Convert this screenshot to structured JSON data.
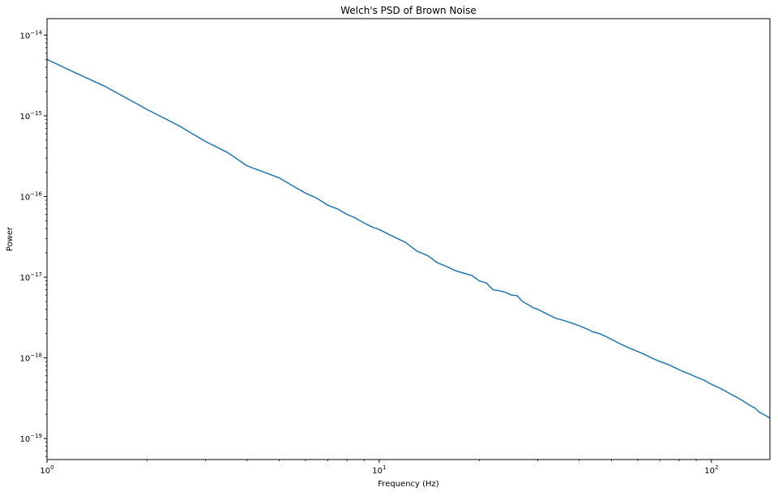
{
  "chart_data": {
    "type": "line",
    "title": "Welch's PSD of Brown Noise",
    "xlabel": "Frequency (Hz)",
    "ylabel": "Power",
    "xscale": "log",
    "yscale": "log",
    "xlim": [
      1,
      150
    ],
    "ylim": [
      5.5e-20,
      1.6e-14
    ],
    "grid": false,
    "line_color": "#1f77b4",
    "x_ticks": [
      {
        "value": 1,
        "base": "10",
        "exp": "0"
      },
      {
        "value": 10,
        "base": "10",
        "exp": "1"
      },
      {
        "value": 100,
        "base": "10",
        "exp": "2"
      }
    ],
    "y_ticks": [
      {
        "value": 1e-14,
        "base": "10",
        "exp": "−14"
      },
      {
        "value": 1e-15,
        "base": "10",
        "exp": "−15"
      },
      {
        "value": 1e-16,
        "base": "10",
        "exp": "−16"
      },
      {
        "value": 1e-17,
        "base": "10",
        "exp": "−17"
      },
      {
        "value": 1e-18,
        "base": "10",
        "exp": "−18"
      },
      {
        "value": 1e-19,
        "base": "10",
        "exp": "−19"
      }
    ],
    "series": [
      {
        "x": [
          1.0,
          1.2,
          1.5,
          2.0,
          2.5,
          3.0,
          3.5,
          4.0,
          4.5,
          5.0,
          5.5,
          6.0,
          6.5,
          7.0,
          7.5,
          8.0,
          8.5,
          9.0,
          9.5,
          10.0,
          11.0,
          12.0,
          13.0,
          14.0,
          15.0,
          16.0,
          17.0,
          18.0,
          19.0,
          20.0,
          21.0,
          22.0,
          23.0,
          24.0,
          25.0,
          26.0,
          27.0,
          28.0,
          29.0,
          30.0,
          32.0,
          34.0,
          36.0,
          38.0,
          40.0,
          42.0,
          44.0,
          46.0,
          48.0,
          50.0,
          53.0,
          56.0,
          60.0,
          63.0,
          66.0,
          70.0,
          74.0,
          78.0,
          82.0,
          86.0,
          90.0,
          95.0,
          100.0,
          105.0,
          110.0,
          115.0,
          120.0,
          125.0,
          130.0,
          135.0,
          140.0,
          145.0,
          150.0
        ],
        "y": [
          5e-15,
          3.5e-15,
          2.3e-15,
          1.2e-15,
          7.5e-16,
          4.8e-16,
          3.5e-16,
          2.4e-16,
          2e-16,
          1.7e-16,
          1.35e-16,
          1.1e-16,
          9.5e-17,
          7.8e-17,
          7e-17,
          6e-17,
          5.4e-17,
          4.7e-17,
          4.2e-17,
          3.9e-17,
          3.2e-17,
          2.7e-17,
          2.1e-17,
          1.85e-17,
          1.5e-17,
          1.35e-17,
          1.2e-17,
          1.12e-17,
          1.05e-17,
          9e-18,
          8.5e-18,
          7e-18,
          6.8e-18,
          6.5e-18,
          6e-18,
          5.9e-18,
          5e-18,
          4.6e-18,
          4.2e-18,
          4e-18,
          3.5e-18,
          3.1e-18,
          2.9e-18,
          2.7e-18,
          2.5e-18,
          2.3e-18,
          2.1e-18,
          2e-18,
          1.85e-18,
          1.7e-18,
          1.5e-18,
          1.35e-18,
          1.2e-18,
          1.1e-18,
          1e-18,
          9e-19,
          8.3e-19,
          7.5e-19,
          6.8e-19,
          6.3e-19,
          5.8e-19,
          5.3e-19,
          4.7e-19,
          4.3e-19,
          3.9e-19,
          3.5e-19,
          3.2e-19,
          2.9e-19,
          2.6e-19,
          2.4e-19,
          2.1e-19,
          1.95e-19,
          1.8e-19
        ]
      }
    ]
  }
}
